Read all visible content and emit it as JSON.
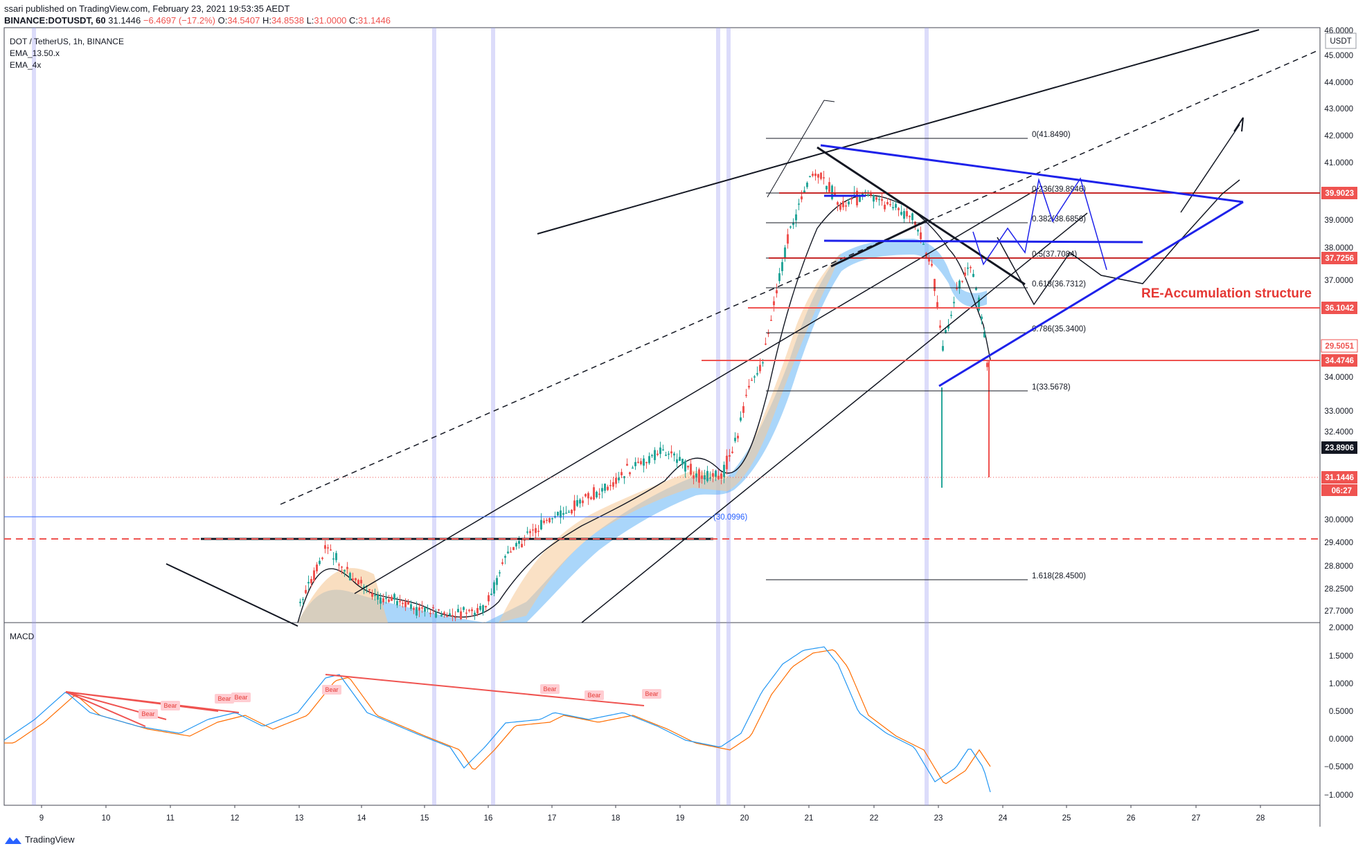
{
  "header": {
    "line1": "ssari published on TradingView.com, February 23, 2021 19:53:35 AEDT",
    "symbol": "BINANCE:DOTUSDT, 60",
    "last": "31.1446",
    "change": "−6.4697 (−17.2%)",
    "open_label": "O:",
    "open": "34.5407",
    "high_label": "H:",
    "high": "34.8538",
    "low_label": "L:",
    "low": "31.0000",
    "close_label": "C:",
    "close": "31.1446"
  },
  "legend": {
    "title": "DOT / TetherUS, 1h, BINANCE",
    "ema1": "EMA_13.50.x",
    "ema2": "EMA_4x"
  },
  "annotation": "RE-Accumulation structure",
  "currency": "USDT",
  "countdown": "06:27",
  "footer": {
    "brand": "TradingView"
  },
  "colors": {
    "red": "#ef5350",
    "blue": "#1e22ea",
    "ema_blue": "#64b5f6",
    "ema_orange": "#f5c896"
  },
  "chart_data": [
    {
      "type": "candlestick",
      "title": "DOT / TetherUS, 1h, BINANCE",
      "y_axis_ticks": [
        "46.0000",
        "45.0000",
        "44.0000",
        "43.0000",
        "42.0000",
        "41.0000",
        "39.0000",
        "38.0000",
        "37.0000",
        "34.0000",
        "33.0000",
        "32.4000",
        "30.0000",
        "29.4000",
        "28.8000",
        "28.2500",
        "27.7000"
      ],
      "x_axis_ticks": [
        "9",
        "10",
        "11",
        "12",
        "13",
        "14",
        "15",
        "16",
        "17",
        "18",
        "19",
        "20",
        "21",
        "22",
        "23",
        "24",
        "25",
        "26",
        "27",
        "28"
      ],
      "price_tags": [
        {
          "label": "39.9023",
          "style": "red"
        },
        {
          "label": "37.7256",
          "style": "red"
        },
        {
          "label": "36.1042",
          "style": "red"
        },
        {
          "label": "29.5051",
          "style": "red-outline"
        },
        {
          "label": "34.4746",
          "style": "red"
        },
        {
          "label": "23.8906",
          "style": "black"
        },
        {
          "label": "31.1446",
          "style": "red"
        }
      ],
      "fib_levels": [
        {
          "label": "0(41.8490)",
          "value": 41.849
        },
        {
          "label": "0.236(39.8946)",
          "value": 39.8946
        },
        {
          "label": "0.382(38.6856)",
          "value": 38.6856
        },
        {
          "label": "0.5(37.7084)",
          "value": 37.7084
        },
        {
          "label": "0.618(36.7312)",
          "value": 36.7312
        },
        {
          "label": "0.786(35.3400)",
          "value": 35.34
        },
        {
          "label": "1(33.5678)",
          "value": 33.5678
        },
        {
          "label": "1.618(28.4500)",
          "value": 28.45
        }
      ],
      "horizontal_line_label": "(30.0996)",
      "close_price": 31.1446,
      "series": [
        {
          "name": "EMA_13.50.x"
        },
        {
          "name": "EMA_4x"
        }
      ]
    },
    {
      "type": "macd",
      "title": "MACD",
      "y_axis_ticks": [
        "2.0000",
        "1.5000",
        "1.0000",
        "0.5000",
        "0.0000",
        "−0.5000",
        "−1.0000"
      ],
      "divergence_labels": [
        "Bear",
        "Bear",
        "Bear",
        "Bear",
        "Bear",
        "Bear",
        "Bear",
        "Bear"
      ]
    }
  ]
}
